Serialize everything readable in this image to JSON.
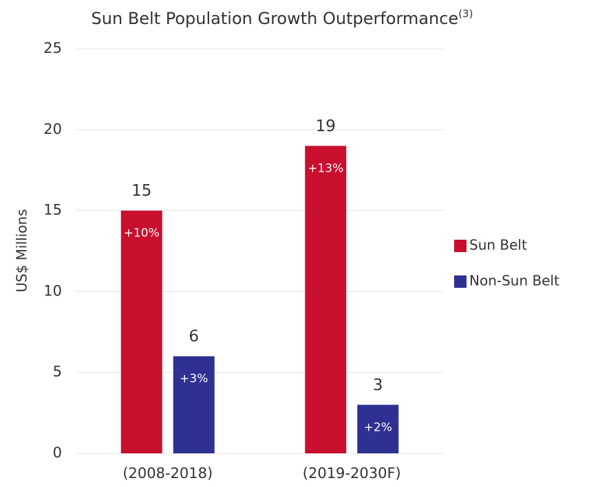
{
  "chart_data": {
    "type": "bar",
    "title": "Sun Belt Population Growth Outperformance",
    "title_note": "(3)",
    "y_label": "US$ Millions",
    "categories": [
      "(2008-2018)",
      "(2019-2030F)"
    ],
    "series": [
      {
        "name": "Sun Belt",
        "color": "#c8102e",
        "values": [
          15,
          19
        ],
        "annotations": [
          "+10%",
          "+13%"
        ]
      },
      {
        "name": "Non-Sun Belt",
        "color": "#2e3192",
        "values": [
          6,
          3
        ],
        "annotations": [
          "+3%",
          "+2%"
        ]
      }
    ],
    "ylim": [
      0,
      25
    ],
    "yticks": [
      0,
      5,
      10,
      15,
      20,
      25
    ],
    "grid": true,
    "legend": "right"
  }
}
